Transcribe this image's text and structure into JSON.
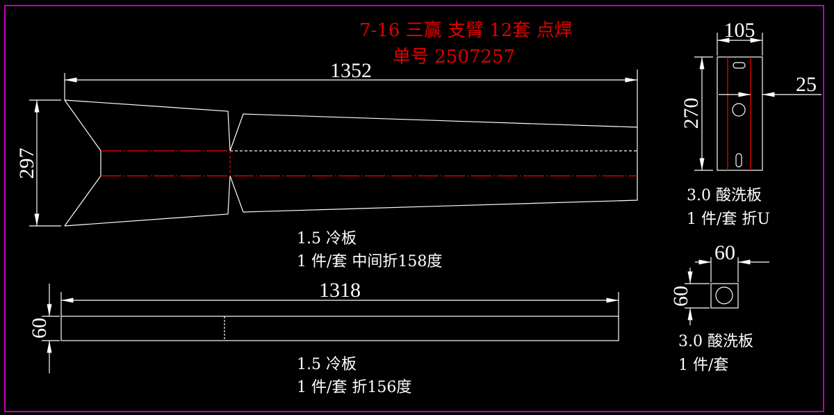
{
  "title": {
    "line1": "7-16 三赢 支臂 12套 点焊",
    "line2": "单号 2507257"
  },
  "part1": {
    "length_dim": "1352",
    "height_dim": "297",
    "material": "1.5 冷板",
    "note": "1 件/套 中间折158度"
  },
  "part2": {
    "length_dim": "1318",
    "height_dim": "60",
    "material": "1.5 冷板",
    "note": "1 件/套 折156度"
  },
  "part3": {
    "width_dim": "105",
    "height_dim": "270",
    "offset_dim": "25",
    "material": "3.0 酸洗板",
    "note": "1 件/套 折U"
  },
  "part4": {
    "width_dim": "60",
    "height_dim": "60",
    "material": "3.0 酸洗板",
    "note": "1 件/套"
  },
  "colors": {
    "background": "#000000",
    "geometry": "#ffffff",
    "title": "#e00000",
    "fold_line": "#ff0000",
    "border": "#ff00ff"
  }
}
